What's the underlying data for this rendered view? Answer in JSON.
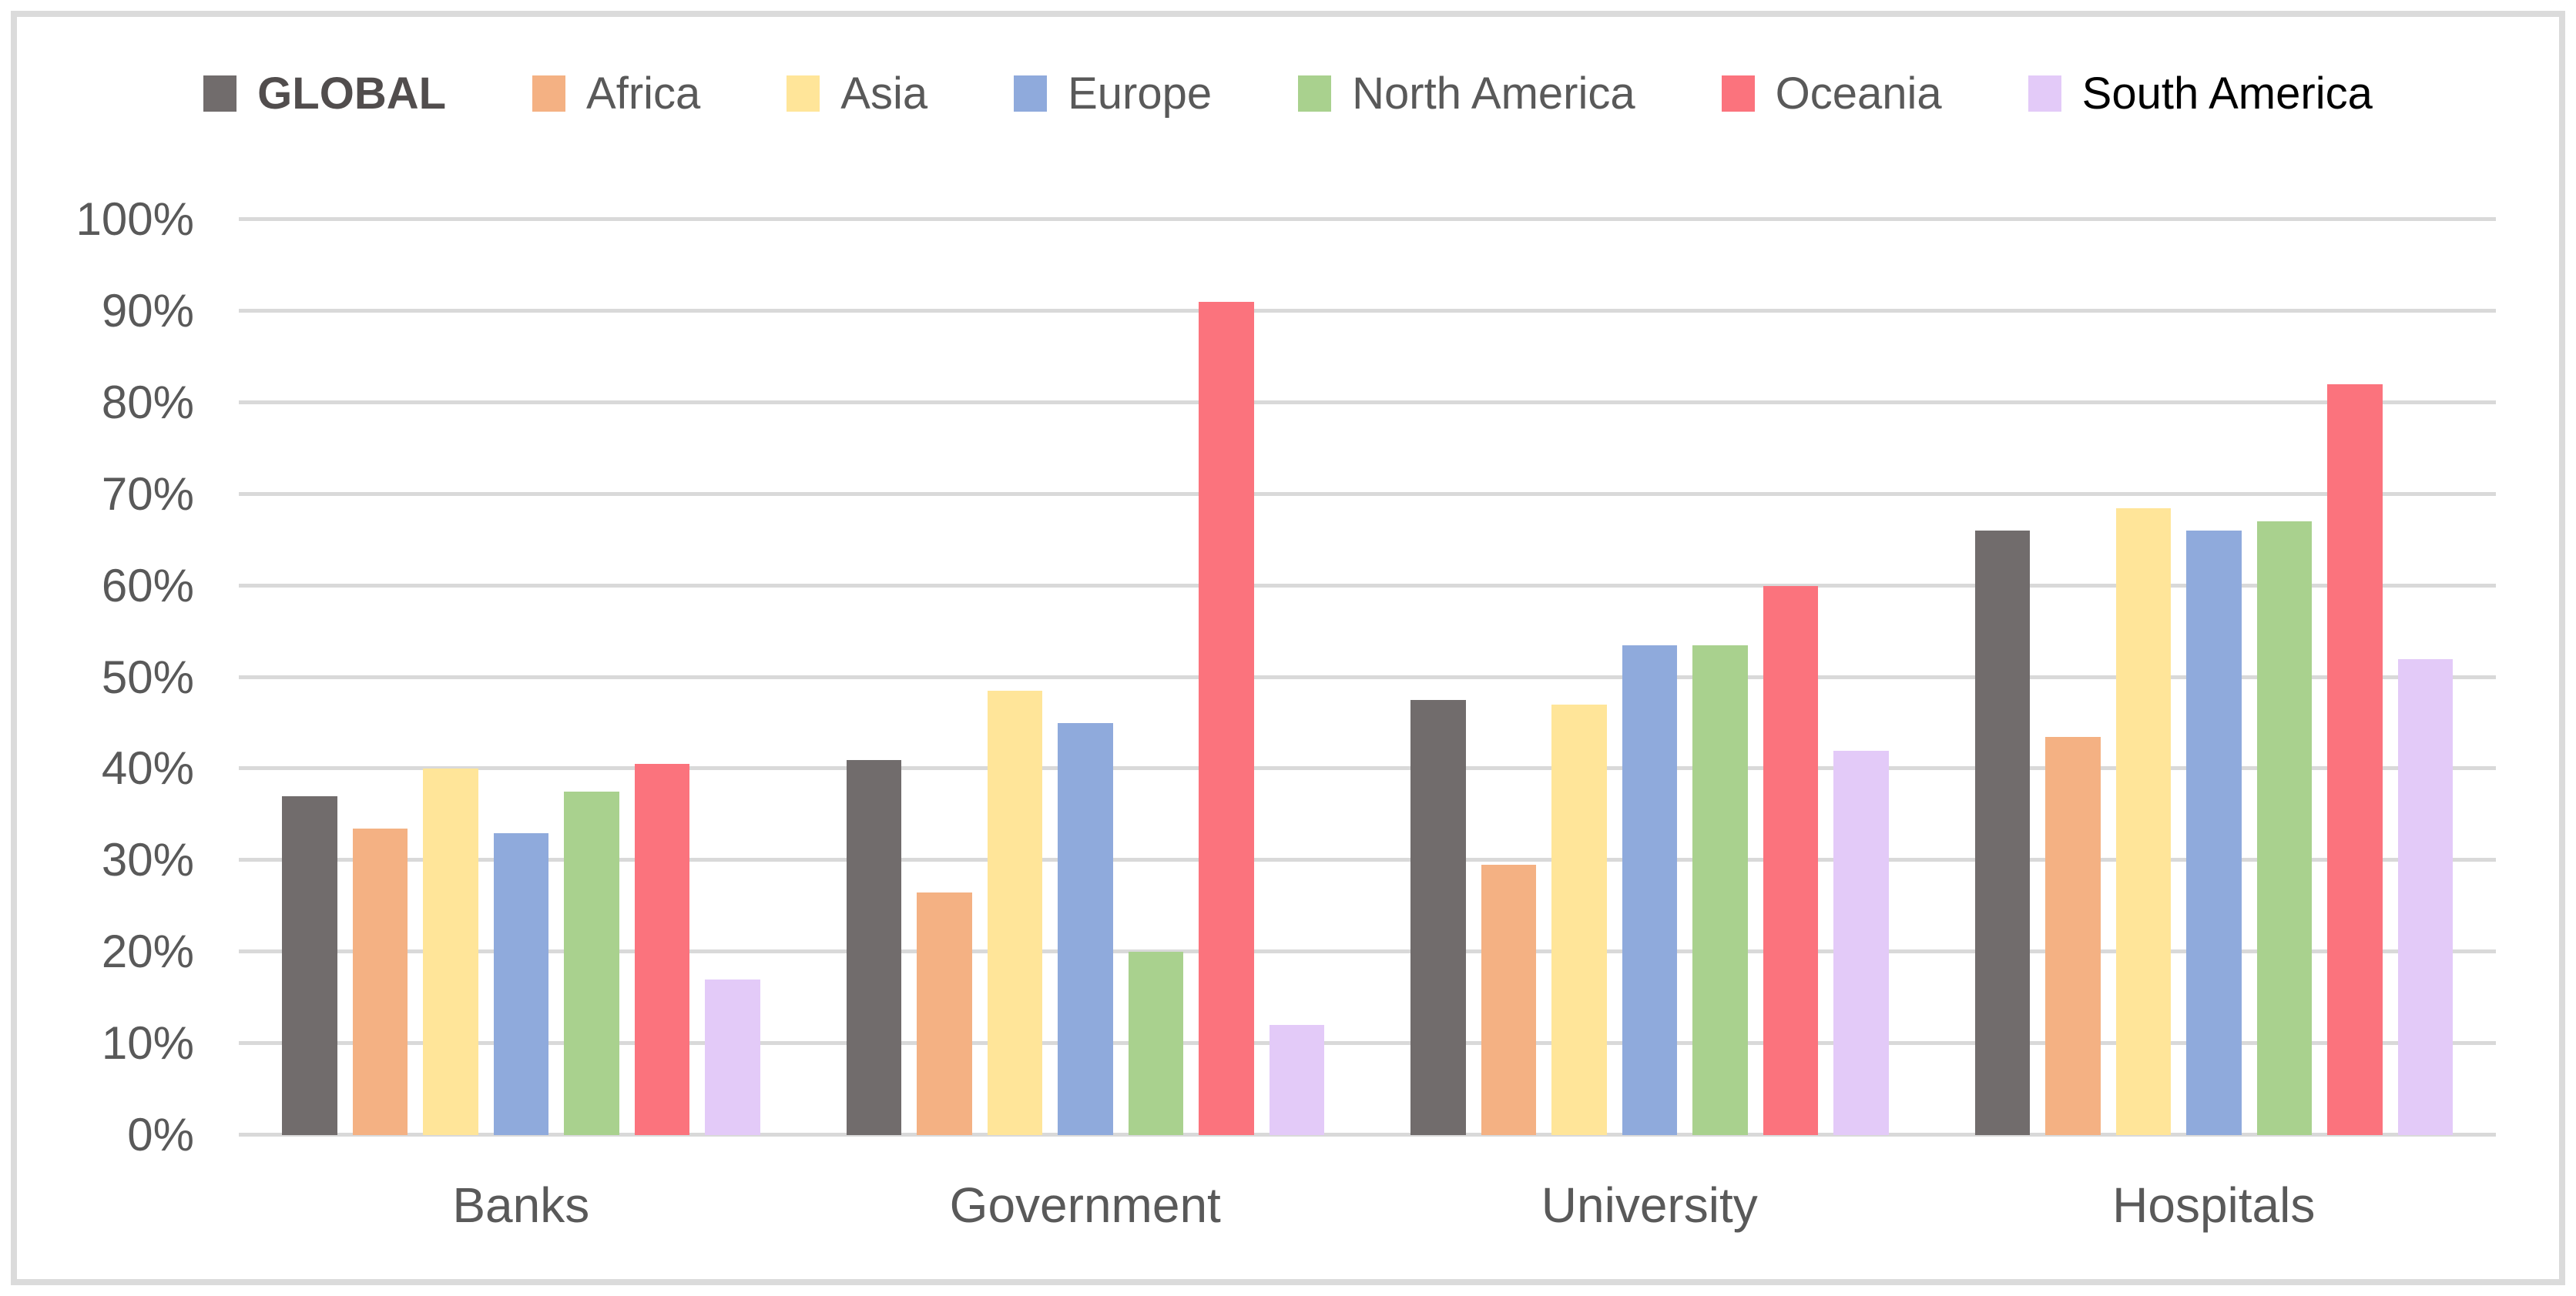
{
  "chart_data": {
    "type": "bar",
    "title": "",
    "categories": [
      "Banks",
      "Government",
      "University",
      "Hospitals"
    ],
    "series": [
      {
        "name": "GLOBAL",
        "color": "#716c6c",
        "label_color": "#514d4d",
        "label_bold": true,
        "values": [
          37,
          41,
          47.5,
          66
        ]
      },
      {
        "name": "Africa",
        "color": "#f4b183",
        "label_color": "#595959",
        "label_bold": false,
        "values": [
          33.5,
          26.5,
          29.5,
          43.5
        ]
      },
      {
        "name": "Asia",
        "color": "#ffe599",
        "label_color": "#595959",
        "label_bold": false,
        "values": [
          40,
          48.5,
          47,
          68.5
        ]
      },
      {
        "name": "Europe",
        "color": "#8faadc",
        "label_color": "#595959",
        "label_bold": false,
        "values": [
          33,
          45,
          53.5,
          66
        ]
      },
      {
        "name": "North America",
        "color": "#a9d18e",
        "label_color": "#595959",
        "label_bold": false,
        "values": [
          37.5,
          20,
          53.5,
          67
        ]
      },
      {
        "name": "Oceania",
        "color": "#fb737d",
        "label_color": "#595959",
        "label_bold": false,
        "values": [
          40.5,
          91,
          60,
          82
        ]
      },
      {
        "name": "South America",
        "color": "#e3caf8",
        "label_color": "#000000",
        "label_bold": false,
        "values": [
          17,
          12,
          42,
          52
        ]
      }
    ],
    "y_ticks": [
      "0%",
      "10%",
      "20%",
      "30%",
      "40%",
      "50%",
      "60%",
      "70%",
      "80%",
      "90%",
      "100%"
    ],
    "ylim": [
      0,
      100
    ],
    "grid": "horizontal",
    "legend_position": "top",
    "colors": {
      "gridline": "#d9d9d9",
      "axis_text": "#595959",
      "frame_border": "#dbdbdb",
      "background": "#ffffff"
    }
  }
}
